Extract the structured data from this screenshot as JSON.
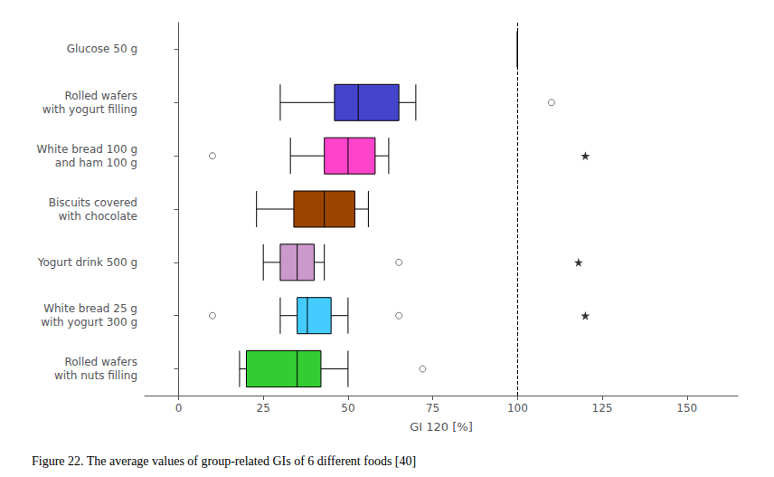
{
  "chart_data": {
    "type": "boxplot",
    "orientation": "horizontal",
    "categories": [
      "Glucose 50 g",
      "Rolled wafers\nwith yogurt filling",
      "White bread 100 g\nand ham 100 g",
      "Biscuits covered\nwith chocolate",
      "Yogurt drink 500 g",
      "White bread 25 g\nwith yogurt 300 g",
      "Rolled wafers\nwith nuts filling"
    ],
    "values": [
      [
        100,
        100,
        100,
        100,
        100
      ],
      [
        30,
        46,
        53,
        65,
        70
      ],
      [
        33,
        43,
        50,
        58,
        62
      ],
      [
        23,
        34,
        43,
        52,
        56
      ],
      [
        25,
        30,
        35,
        40,
        43
      ],
      [
        30,
        35,
        38,
        45,
        50
      ],
      [
        18,
        20,
        35,
        42,
        50
      ]
    ],
    "outliers_circle": [
      [],
      [
        110
      ],
      [
        10
      ],
      [],
      [
        65
      ],
      [
        10,
        65
      ],
      [
        72
      ]
    ],
    "outliers_star": [
      [],
      [],
      [
        120
      ],
      [],
      [
        118
      ],
      [
        120
      ],
      []
    ],
    "colors": [
      "#000000",
      "#4444cc",
      "#ff44cc",
      "#994400",
      "#cc99cc",
      "#44ccff",
      "#33cc33"
    ],
    "reference_x": 100,
    "xlim": [
      -10,
      165
    ],
    "xticks": [
      0,
      25,
      50,
      75,
      100,
      125,
      150
    ],
    "xlabel": "GI 120 [%]",
    "caption": "Figure 22. The average values of group-related GIs of 6 different foods [40]",
    "grid": false
  }
}
